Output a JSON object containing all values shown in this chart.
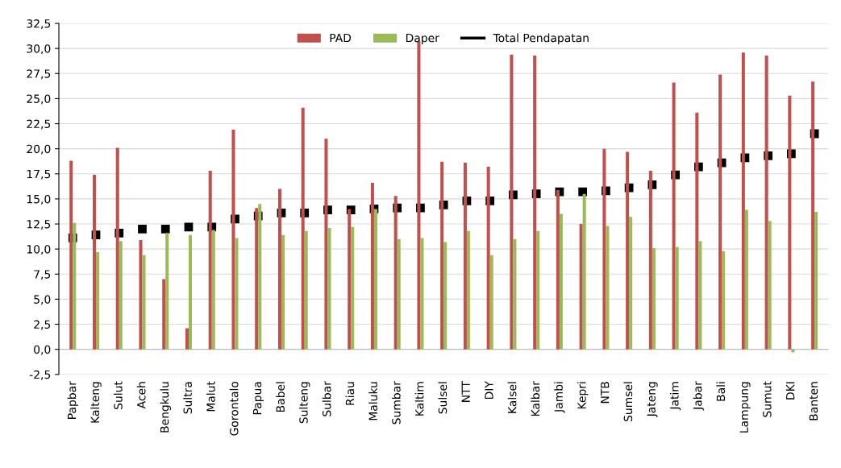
{
  "chart_data": {
    "type": "bar",
    "categories": [
      "Papbar",
      "Kalteng",
      "Sulut",
      "Aceh",
      "Bengkulu",
      "Sultra",
      "Malut",
      "Gorontalo",
      "Papua",
      "Babel",
      "Sulteng",
      "Sulbar",
      "Riau",
      "Maluku",
      "Sumbar",
      "Kaltim",
      "Sulsel",
      "NTT",
      "DIY",
      "Kalsel",
      "Kalbar",
      "Jambi",
      "Kepri",
      "NTB",
      "Sumsel",
      "Jateng",
      "Jatim",
      "Jabar",
      "Bali",
      "Lampung",
      "Sumut",
      "DKI",
      "Banten"
    ],
    "series": [
      {
        "name": "PAD",
        "color": "#c0504d",
        "values": [
          18.8,
          17.4,
          20.1,
          10.9,
          7.0,
          2.1,
          17.8,
          21.9,
          14.1,
          16.0,
          24.1,
          21.0,
          14.0,
          16.6,
          15.3,
          30.7,
          18.7,
          18.6,
          18.2,
          29.4,
          29.3,
          15.9,
          12.5,
          20.0,
          19.7,
          17.8,
          26.6,
          23.6,
          27.4,
          29.6,
          29.3,
          25.3,
          26.7
        ]
      },
      {
        "name": "Daper",
        "color": "#9bbb59",
        "values": [
          12.6,
          9.7,
          10.8,
          9.4,
          11.6,
          11.4,
          11.9,
          11.1,
          14.5,
          11.4,
          11.8,
          12.1,
          12.2,
          14.0,
          11.0,
          11.1,
          10.7,
          11.8,
          9.4,
          11.0,
          11.8,
          13.5,
          15.5,
          12.3,
          13.2,
          10.1,
          10.2,
          10.8,
          9.8,
          13.9,
          12.8,
          -0.3,
          13.7
        ]
      },
      {
        "name": "Total Pendapatan",
        "type": "scatter",
        "marker": "square",
        "color": "#000000",
        "values": [
          11.1,
          11.4,
          11.6,
          12.0,
          12.0,
          12.2,
          12.2,
          13.0,
          13.3,
          13.6,
          13.6,
          13.9,
          13.9,
          14.0,
          14.1,
          14.1,
          14.4,
          14.8,
          14.8,
          15.4,
          15.5,
          15.7,
          15.7,
          15.8,
          16.1,
          16.4,
          17.4,
          18.2,
          18.6,
          19.1,
          19.3,
          19.5,
          21.5
        ]
      }
    ],
    "ylim": [
      -2.5,
      32.5
    ],
    "yticks": [
      {
        "value": -2.5,
        "label": "-2,5"
      },
      {
        "value": 0,
        "label": "0,0"
      },
      {
        "value": 2.5,
        "label": "2,5"
      },
      {
        "value": 5,
        "label": "5,0"
      },
      {
        "value": 7.5,
        "label": "7,5"
      },
      {
        "value": 10,
        "label": "10,0"
      },
      {
        "value": 12.5,
        "label": "12,5"
      },
      {
        "value": 15,
        "label": "15,0"
      },
      {
        "value": 17.5,
        "label": "17,5"
      },
      {
        "value": 20,
        "label": "20,0"
      },
      {
        "value": 22.5,
        "label": "22,5"
      },
      {
        "value": 25,
        "label": "25,0"
      },
      {
        "value": 27.5,
        "label": "27,5"
      },
      {
        "value": 30,
        "label": "30,0"
      },
      {
        "value": 32.5,
        "label": "32,5"
      }
    ],
    "grid": "y",
    "legend": "top"
  }
}
